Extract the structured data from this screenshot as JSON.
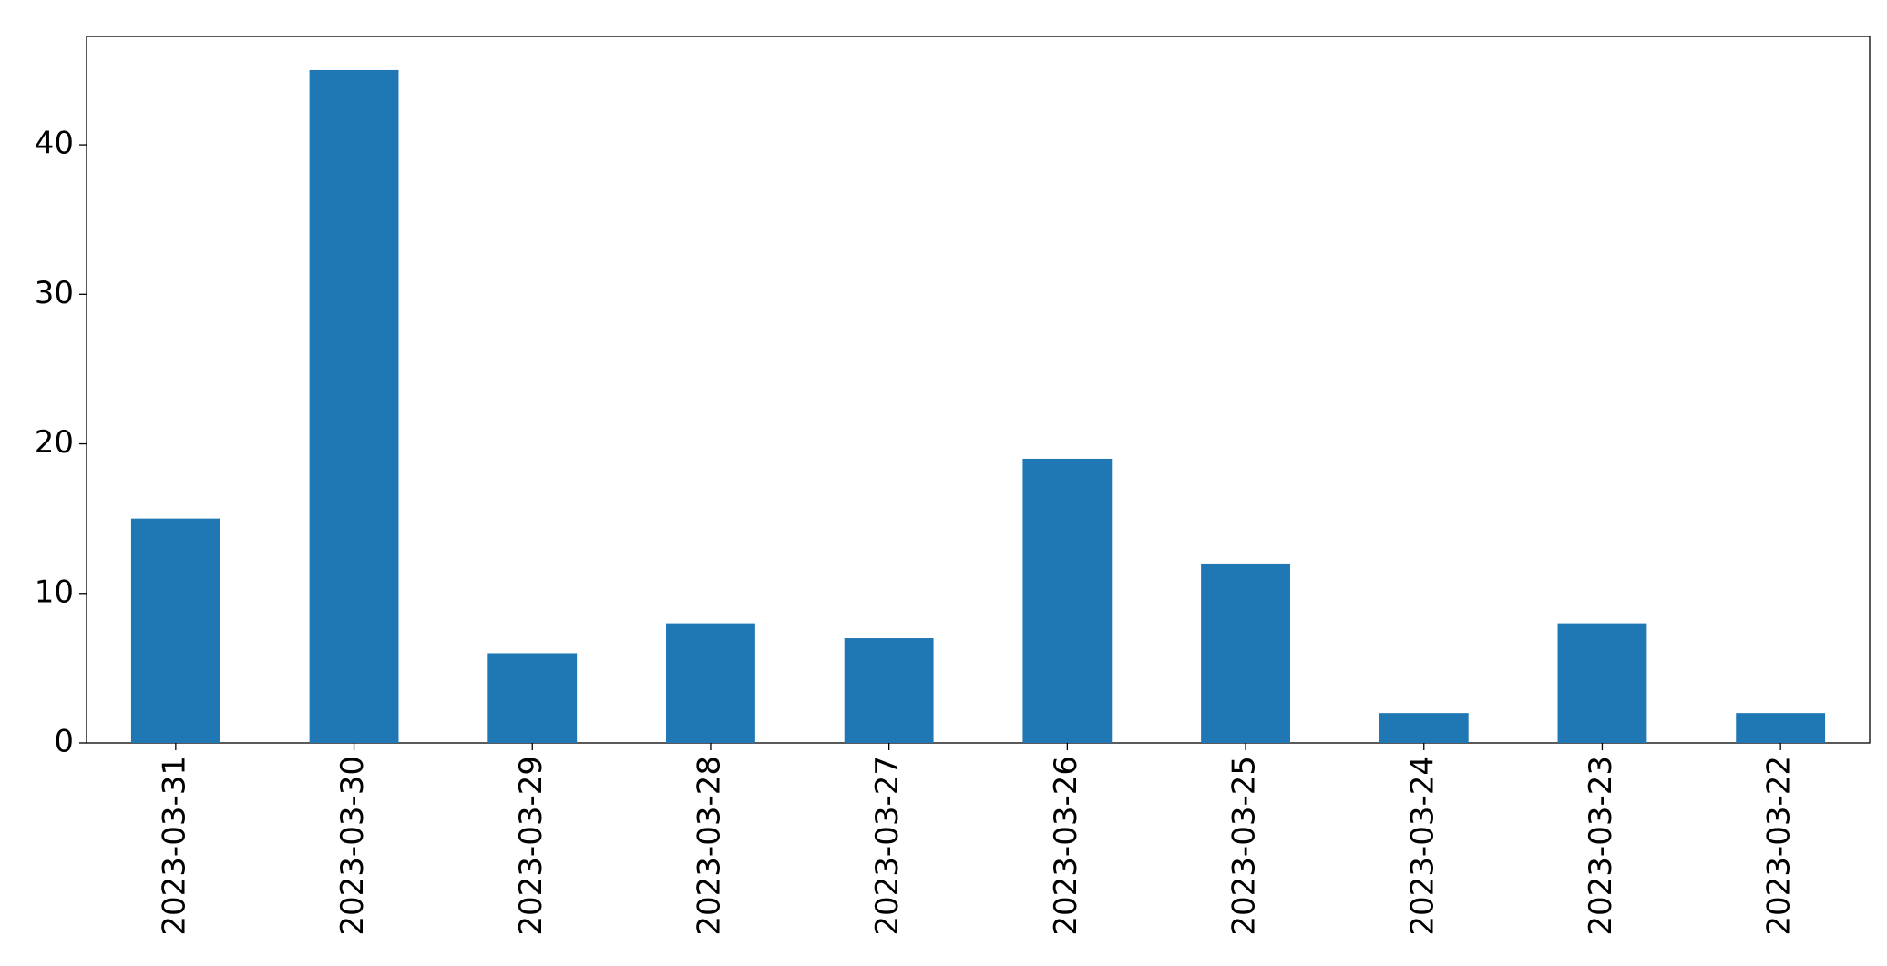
{
  "chart_data": {
    "type": "bar",
    "categories": [
      "2023-03-31",
      "2023-03-30",
      "2023-03-29",
      "2023-03-28",
      "2023-03-27",
      "2023-03-26",
      "2023-03-25",
      "2023-03-24",
      "2023-03-23",
      "2023-03-22"
    ],
    "values": [
      15,
      45,
      6,
      8,
      7,
      19,
      12,
      2,
      8,
      2
    ],
    "color": "#1f77b4",
    "ylim": [
      0,
      47.25
    ],
    "yticks": [
      0,
      10,
      20,
      30,
      40
    ],
    "grid": false
  }
}
